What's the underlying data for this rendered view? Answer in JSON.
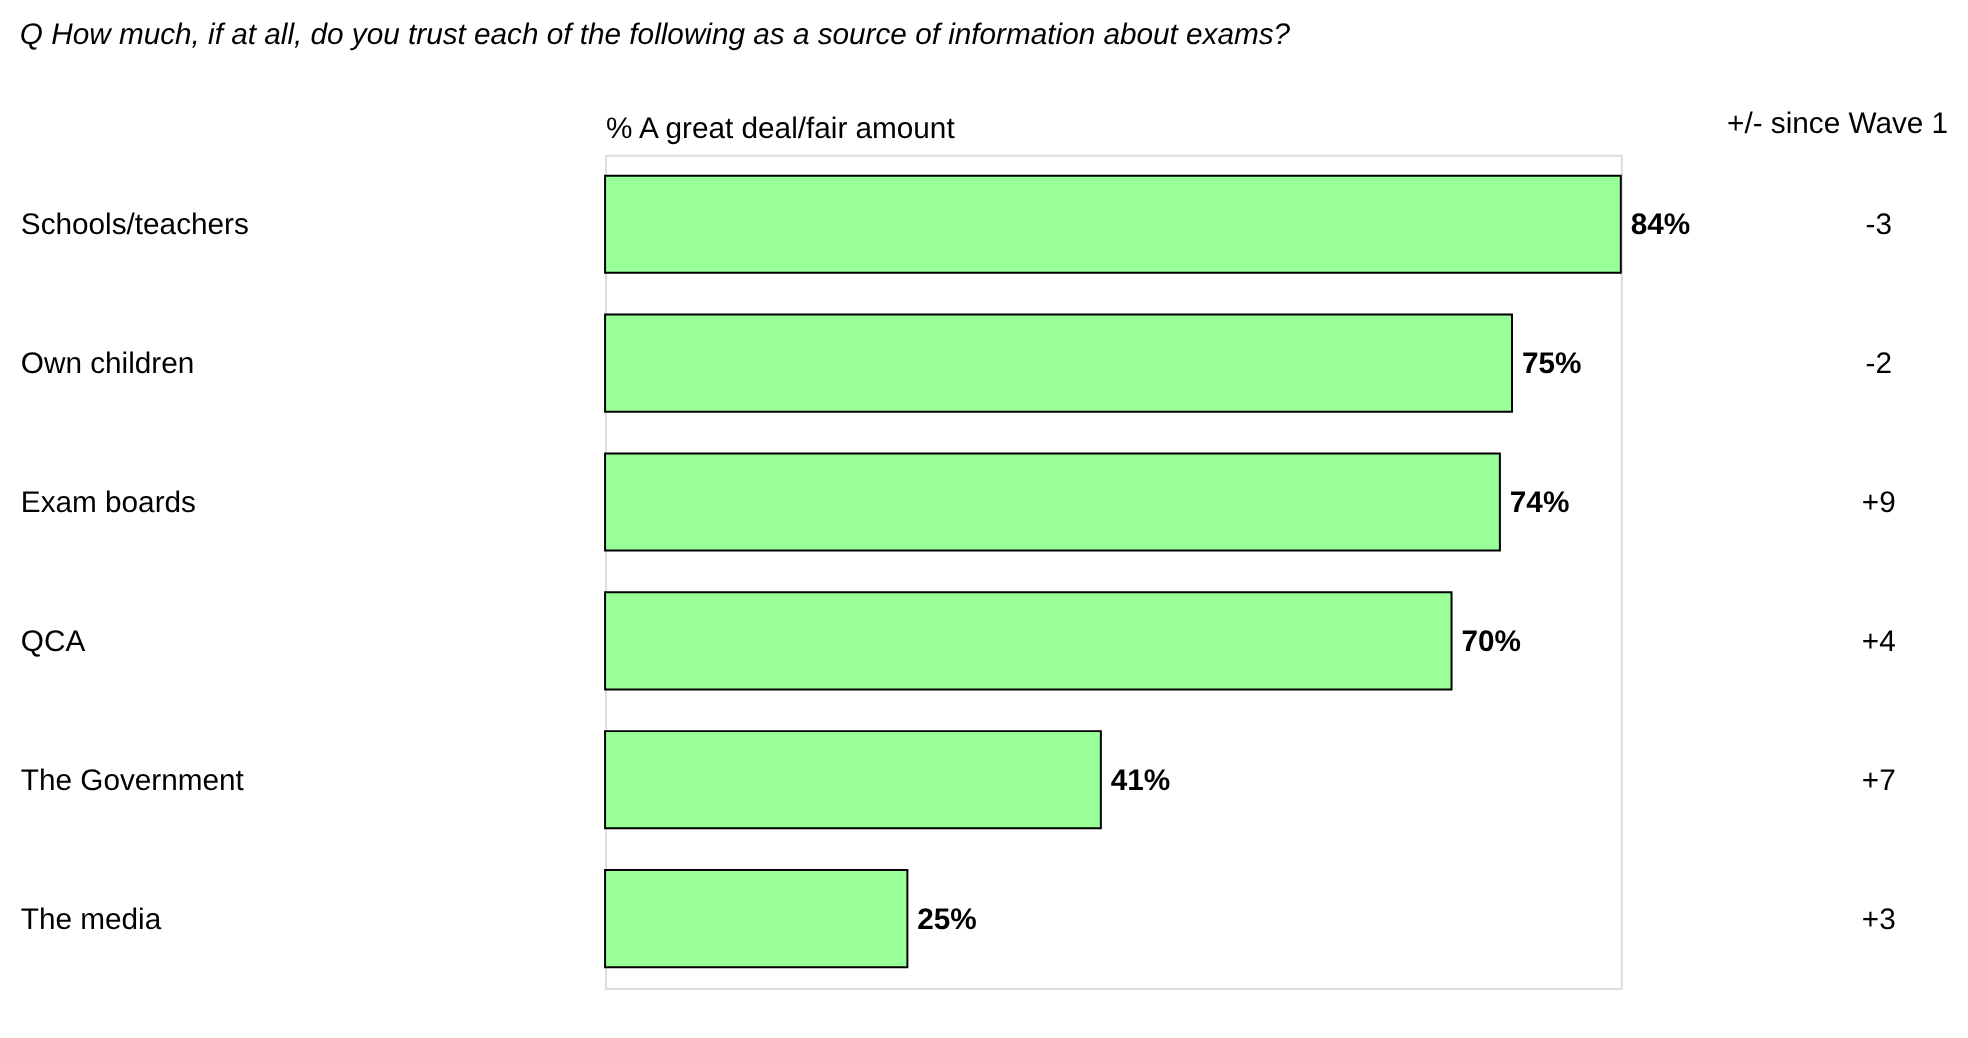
{
  "chart_data": {
    "type": "bar",
    "orientation": "horizontal",
    "title": "Q  How much, if at all, do you trust each of the following as a source of information about exams?",
    "xlabel": "% A great deal/fair amount",
    "categories": [
      "Schools/teachers",
      "Own children",
      "Exam boards",
      "QCA",
      "The Government",
      "The media"
    ],
    "values": [
      84,
      75,
      74,
      70,
      41,
      25
    ],
    "color": "#99ff99",
    "value_labels": [
      "84%",
      "75%",
      "74%",
      "70%",
      "41%",
      "25%"
    ],
    "annotations": [
      "+/- since Wave 1",
      "-3",
      "-2",
      "+9",
      "+4",
      "+7",
      "+3"
    ],
    "grid": false
  }
}
